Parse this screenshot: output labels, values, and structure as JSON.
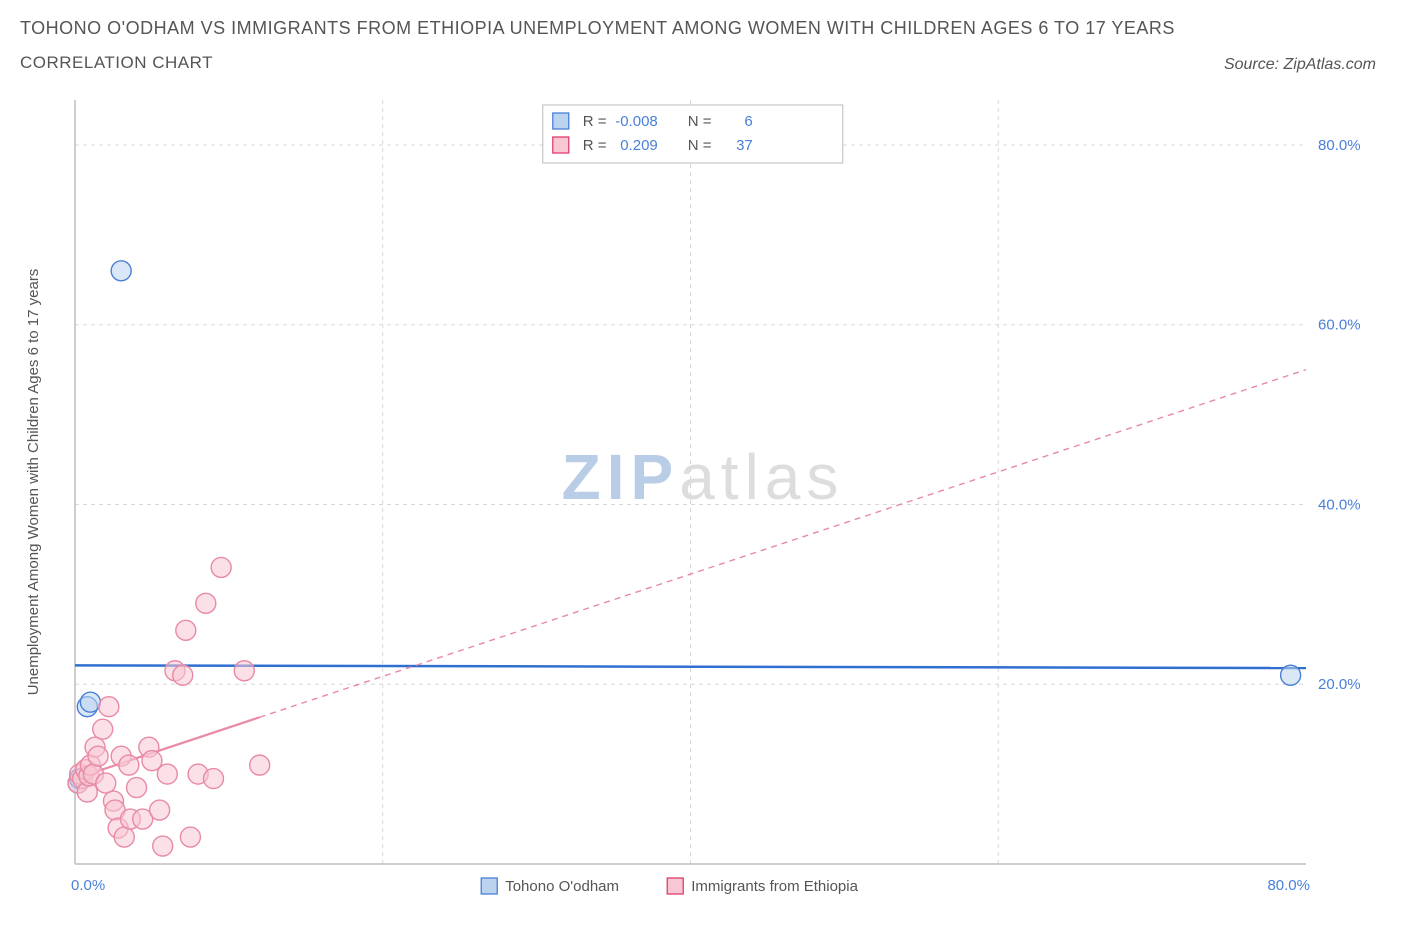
{
  "header": {
    "title": "TOHONO O'ODHAM VS IMMIGRANTS FROM ETHIOPIA UNEMPLOYMENT AMONG WOMEN WITH CHILDREN AGES 6 TO 17 YEARS",
    "subtitle": "CORRELATION CHART",
    "source": "Source: ZipAtlas.com"
  },
  "chart": {
    "type": "scatter",
    "xlim": [
      0,
      80
    ],
    "ylim": [
      0,
      85
    ],
    "x_ticks": [
      0,
      80
    ],
    "y_ticks": [
      20,
      40,
      60,
      80
    ],
    "x_tick_labels": [
      "0.0%",
      "80.0%"
    ],
    "y_tick_labels": [
      "20.0%",
      "40.0%",
      "60.0%",
      "80.0%"
    ],
    "grid_major_x": [
      20,
      40,
      60
    ],
    "x_axis_label": "",
    "y_axis_label": "Unemployment Among Women with Children Ages 6 to 17 years",
    "label_fontsize": 15,
    "tick_fontsize": 15,
    "tick_color": "#4a7fd8",
    "background_color": "#ffffff",
    "grid_color": "#d8d8d8",
    "axis_color": "#bdbdbd",
    "watermark": {
      "part1": "ZIP",
      "part2": "atlas"
    },
    "legend_top": {
      "box_border": "#bbbbbb",
      "rows": [
        {
          "swatch_fill": "#bcd3f0",
          "swatch_stroke": "#4a7fd8",
          "r_label": "R =",
          "r_value": "-0.008",
          "n_label": "N =",
          "n_value": "6"
        },
        {
          "swatch_fill": "#f8c7d4",
          "swatch_stroke": "#e23d6d",
          "r_label": "R =",
          "r_value": "0.209",
          "n_label": "N =",
          "n_value": "37"
        }
      ]
    },
    "legend_bottom": {
      "items": [
        {
          "swatch_fill": "#bcd3f0",
          "swatch_stroke": "#4a7fd8",
          "label": "Tohono O'odham"
        },
        {
          "swatch_fill": "#f8c7d4",
          "swatch_stroke": "#e23d6d",
          "label": "Immigrants from Ethiopia"
        }
      ]
    },
    "series": [
      {
        "name": "tohono",
        "color_fill": "#bcd3f0",
        "color_stroke": "#4a7fd8",
        "marker_r": 10,
        "points": [
          [
            0.2,
            9.0
          ],
          [
            0.3,
            9.5
          ],
          [
            0.8,
            17.5
          ],
          [
            1.0,
            18.0
          ],
          [
            3.0,
            66.0
          ],
          [
            79.0,
            21.0
          ]
        ],
        "trend": {
          "x1": 0,
          "y1": 22.1,
          "x2": 80,
          "y2": 21.8,
          "color": "#2f6fd0",
          "width": 2.5,
          "dash": "none"
        }
      },
      {
        "name": "ethiopia",
        "color_fill": "#f8c7d4",
        "color_stroke": "#e88aa3",
        "marker_r": 10,
        "points": [
          [
            0.2,
            9.0
          ],
          [
            0.3,
            10.0
          ],
          [
            0.5,
            9.5
          ],
          [
            0.7,
            10.5
          ],
          [
            0.8,
            8.0
          ],
          [
            0.9,
            9.8
          ],
          [
            1.0,
            11.0
          ],
          [
            1.2,
            10.0
          ],
          [
            1.3,
            13.0
          ],
          [
            1.5,
            12.0
          ],
          [
            1.8,
            15.0
          ],
          [
            2.0,
            9.0
          ],
          [
            2.2,
            17.5
          ],
          [
            2.5,
            7.0
          ],
          [
            2.6,
            6.0
          ],
          [
            2.8,
            4.0
          ],
          [
            3.0,
            12.0
          ],
          [
            3.2,
            3.0
          ],
          [
            3.5,
            11.0
          ],
          [
            3.6,
            5.0
          ],
          [
            4.0,
            8.5
          ],
          [
            4.4,
            5.0
          ],
          [
            4.8,
            13.0
          ],
          [
            5.0,
            11.5
          ],
          [
            5.5,
            6.0
          ],
          [
            5.7,
            2.0
          ],
          [
            6.0,
            10.0
          ],
          [
            6.5,
            21.5
          ],
          [
            7.0,
            21.0
          ],
          [
            7.2,
            26.0
          ],
          [
            7.5,
            3.0
          ],
          [
            8.0,
            10.0
          ],
          [
            8.5,
            29.0
          ],
          [
            9.0,
            9.5
          ],
          [
            11.0,
            21.5
          ],
          [
            12.0,
            11.0
          ],
          [
            9.5,
            33.0
          ]
        ],
        "trend": {
          "x1": 0,
          "y1": 9.5,
          "x2": 80,
          "y2": 55.0,
          "color": "#e88aa3",
          "width": 1.4,
          "dash": "6 5",
          "solid_until_x": 12
        }
      }
    ]
  }
}
